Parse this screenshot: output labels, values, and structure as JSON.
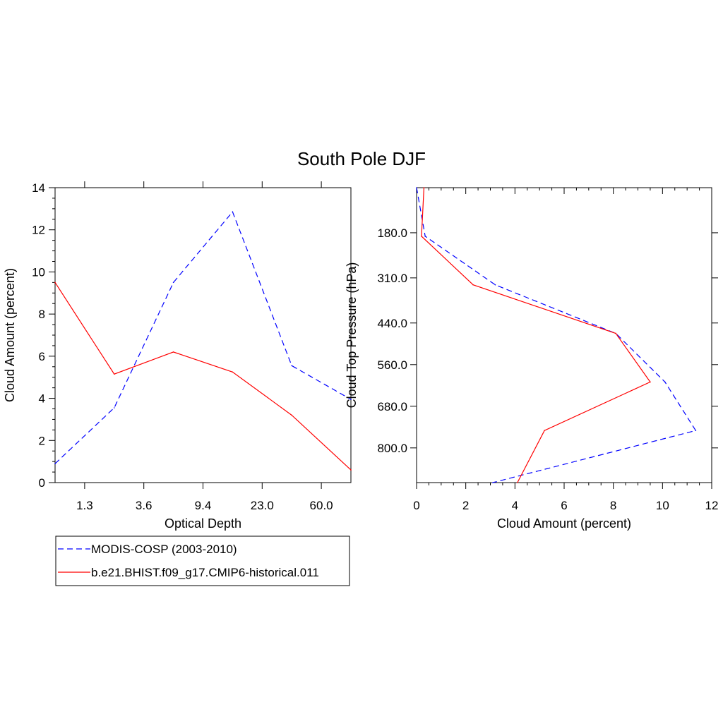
{
  "title": "South Pole DJF",
  "colors": {
    "obs": "#0000ff",
    "model": "#ff0000",
    "axis": "#000000"
  },
  "legend": {
    "items": [
      {
        "label": "MODIS-COSP (2003-2010)",
        "color": "#0000ff",
        "style": "dashed"
      },
      {
        "label": "b.e21.BHIST.f09_g17.CMIP6-historical.011",
        "color": "#ff0000",
        "style": "solid"
      }
    ]
  },
  "chart_data": [
    {
      "type": "line",
      "xlabel": "Optical Depth",
      "ylabel": "Cloud Amount (percent)",
      "categories": [
        "",
        "1.3",
        "",
        "3.6",
        "",
        "9.4",
        "",
        "23.0",
        "",
        "60.0",
        ""
      ],
      "xlim": [
        0,
        10
      ],
      "ylim": [
        0,
        14
      ],
      "yticks": [
        0,
        2,
        4,
        6,
        8,
        10,
        12,
        14
      ],
      "series": [
        {
          "name": "MODIS-COSP (2003-2010)",
          "color": "#0000ff",
          "style": "dashed",
          "x": [
            0,
            2,
            4,
            6,
            8,
            10
          ],
          "values": [
            0.9,
            3.55,
            9.5,
            12.85,
            5.55,
            3.95
          ]
        },
        {
          "name": "b.e21.BHIST.f09_g17.CMIP6-historical.011",
          "color": "#ff0000",
          "style": "solid",
          "x": [
            0,
            2,
            4,
            6,
            8,
            10
          ],
          "values": [
            9.5,
            5.15,
            6.2,
            5.25,
            3.2,
            0.6
          ]
        }
      ]
    },
    {
      "type": "line",
      "xlabel": "Cloud Amount (percent)",
      "ylabel": "Cloud Top Pressure (hPa)",
      "xlim": [
        0,
        12
      ],
      "xticks": [
        0,
        2,
        4,
        6,
        8,
        10,
        12
      ],
      "ylim": [
        50,
        900
      ],
      "yreversed": true,
      "yticks": [
        180.0,
        310.0,
        440.0,
        560.0,
        680.0,
        800.0
      ],
      "ytick_labels": [
        "180.0",
        "310.0",
        "440.0",
        "560.0",
        "680.0",
        "800.0"
      ],
      "series": [
        {
          "name": "MODIS-COSP (2003-2010)",
          "color": "#0000ff",
          "style": "dashed",
          "x": [
            0.0,
            0.35,
            3.2,
            8.1,
            10.1,
            11.35,
            3.1
          ],
          "y": [
            50,
            190,
            330,
            470,
            610,
            750,
            900
          ]
        },
        {
          "name": "b.e21.BHIST.f09_g17.CMIP6-historical.011",
          "color": "#ff0000",
          "style": "solid",
          "x": [
            0.3,
            0.2,
            2.3,
            8.1,
            9.5,
            5.2,
            4.1
          ],
          "y": [
            50,
            190,
            330,
            470,
            610,
            750,
            900
          ]
        }
      ]
    }
  ]
}
